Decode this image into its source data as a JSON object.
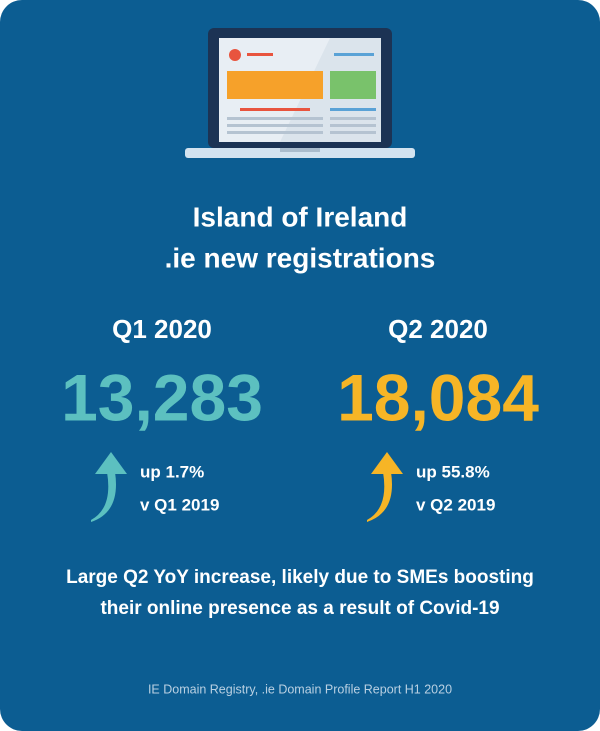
{
  "title": {
    "line1": "Island of Ireland",
    "line2": ".ie new registrations"
  },
  "stats": [
    {
      "quarter": "Q1 2020",
      "value": "13,283",
      "change": "up 1.7%",
      "comparison": "v Q1 2019",
      "color": "#5cc0c0"
    },
    {
      "quarter": "Q2 2020",
      "value": "18,084",
      "change": "up 55.8%",
      "comparison": "v Q2 2019",
      "color": "#f6b526"
    }
  ],
  "note": {
    "line1": "Large Q2 YoY increase, likely due to SMEs boosting",
    "line2": "their online presence as a result of Covid-19"
  },
  "source": "IE Domain Registry, .ie Domain Profile Report H1 2020"
}
